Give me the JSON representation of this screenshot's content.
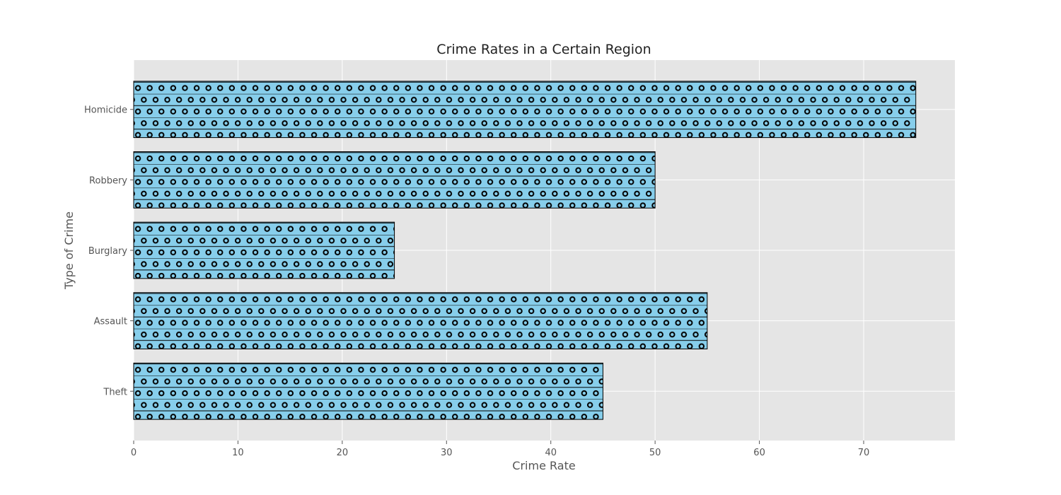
{
  "chart_data": {
    "type": "bar",
    "orientation": "horizontal",
    "title": "Crime Rates in a Certain Region",
    "xlabel": "Crime Rate",
    "ylabel": "Type of Crime",
    "categories": [
      "Theft",
      "Assault",
      "Burglary",
      "Robbery",
      "Homicide"
    ],
    "values": [
      45,
      55,
      25,
      50,
      75
    ],
    "xlim": [
      0,
      78.75
    ],
    "xticks": [
      0,
      10,
      20,
      30,
      40,
      50,
      60,
      70
    ],
    "grid": true,
    "legend": "none",
    "hatch": "o",
    "colors": {
      "bar_fill": "#87ceeb",
      "bar_edge": "#000000",
      "plot_background": "#e5e5e5",
      "grid": "#ffffff",
      "tick_text": "#555555",
      "title_text": "#222222"
    }
  }
}
